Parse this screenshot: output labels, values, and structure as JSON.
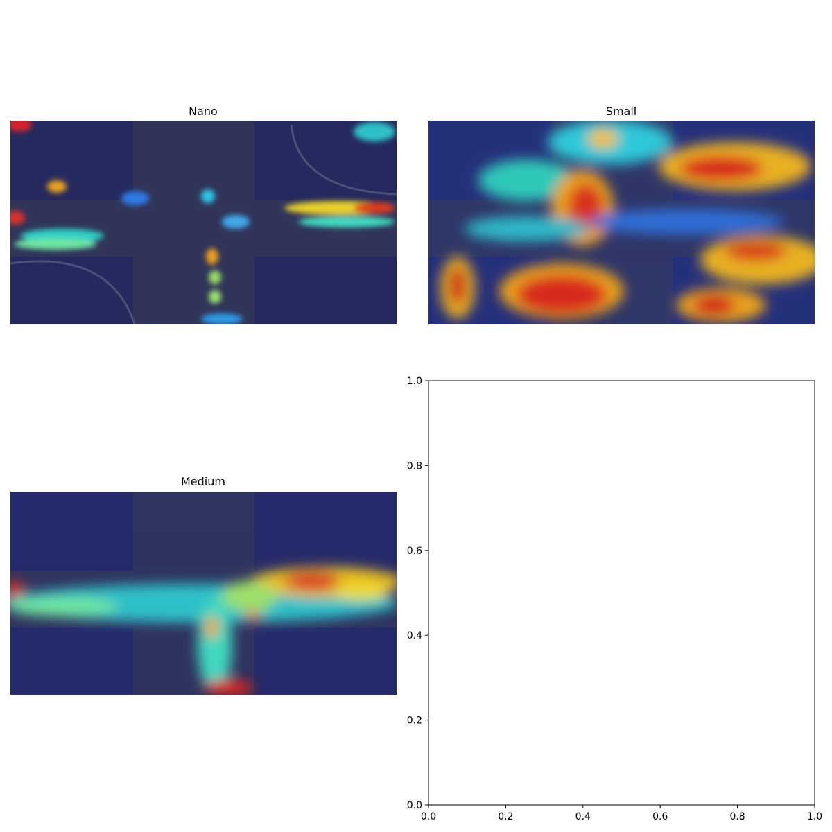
{
  "figure": {
    "panels": [
      {
        "title": "Nano"
      },
      {
        "title": "Small"
      },
      {
        "title": "Medium"
      }
    ]
  },
  "chart_data": [
    {
      "type": "heatmap",
      "title": "Nano",
      "description_hotspots": "low overall activation; isolated hot spots on individual vehicles",
      "axes_visible": false
    },
    {
      "type": "heatmap",
      "title": "Small",
      "axes_visible": false
    },
    {
      "type": "heatmap",
      "title": "Medium",
      "axes_visible": false
    },
    {
      "type": "scatter",
      "title": "",
      "xlabel": "",
      "ylabel": "",
      "xlim": [
        0.0,
        1.0
      ],
      "ylim": [
        0.0,
        1.0
      ],
      "x_ticks": [
        "0.0",
        "0.2",
        "0.4",
        "0.6",
        "0.8",
        "1.0"
      ],
      "y_ticks": [
        "0.0",
        "0.2",
        "0.4",
        "0.6",
        "0.8",
        "1.0"
      ],
      "series": []
    }
  ],
  "colors": {
    "base": "#2c2f52",
    "cold": "#1e2a8c",
    "warm": "#e83a1a"
  }
}
